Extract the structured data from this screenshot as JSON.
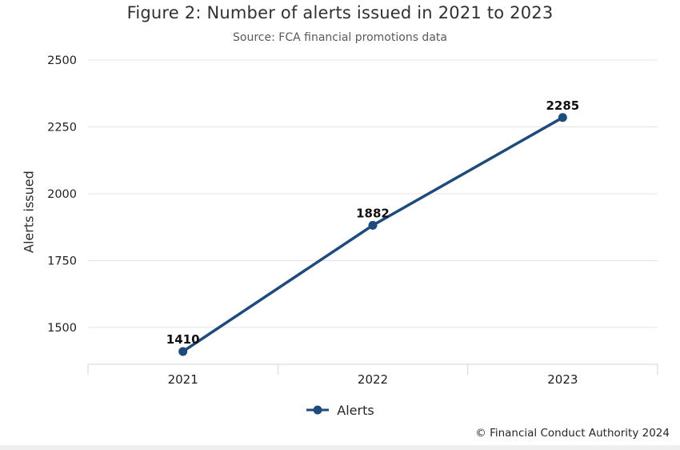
{
  "page": {
    "footer_copyright": "© Financial Conduct Authority 2024"
  },
  "chart_data": {
    "type": "line",
    "title": "Figure 2: Number of alerts issued in 2021 to 2023",
    "subtitle": "Source: FCA financial promotions data",
    "categories": [
      "2021",
      "2022",
      "2023"
    ],
    "series": [
      {
        "name": "Alerts",
        "values": [
          1410,
          1882,
          2285
        ],
        "color": "#1f4a7c"
      }
    ],
    "xlabel": "",
    "ylabel": "Alerts issued",
    "yticks": [
      1500,
      1750,
      2000,
      2250,
      2500
    ],
    "ylim": [
      1362,
      2500
    ],
    "grid": true,
    "legend_position": "bottom",
    "data_labels": true
  },
  "colors": {
    "line": "#1f4a7c",
    "grid": "#e4e4e4",
    "axis": "#d4d4d4",
    "title_text": "#303030",
    "subtitle_text": "#5a5a5a",
    "tick_text": "#1f1f1f",
    "data_label_text": "#101010",
    "footer_bar": "#efefef"
  }
}
